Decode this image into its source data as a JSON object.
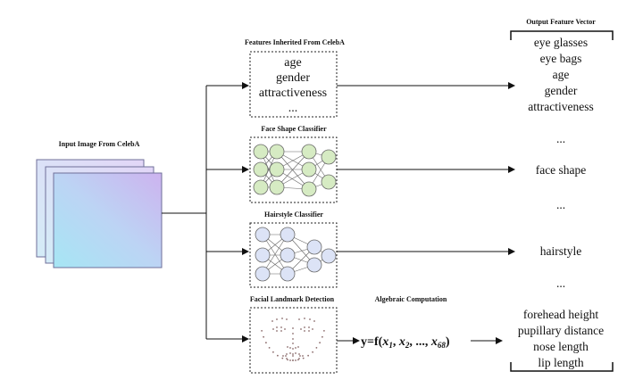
{
  "input": {
    "title": "Input Image From CelebA"
  },
  "modules": {
    "inherited": {
      "title": "Features Inherited From CelebA",
      "lines": [
        "age",
        "gender",
        "attractiveness",
        "..."
      ]
    },
    "face_shape": {
      "title": "Face Shape Classifier"
    },
    "hairstyle": {
      "title": "Hairstyle Classifier"
    },
    "landmark": {
      "title": "Facial Landmark Detection"
    }
  },
  "algebra": {
    "title": "Algebraic Computation",
    "formula": {
      "prefix": "y=f(",
      "x1": "x",
      "sub1": "1",
      "sep1": ", ",
      "x2": "x",
      "sub2": "2",
      "sep2": ", ..., ",
      "x3": "x",
      "sub3": "68",
      "suffix": ")"
    }
  },
  "output": {
    "title": "Output Feature Vector",
    "items": [
      "eye glasses",
      "eye bags",
      "age",
      "gender",
      "attractiveness",
      "...",
      "face shape",
      "...",
      "hairstyle",
      "...",
      "forehead height",
      "pupillary  distance",
      "nose length",
      "lip length"
    ]
  },
  "colors": {
    "image_gradient": [
      "#cdb3ef",
      "#b8d8f4",
      "#a6e3f4"
    ],
    "face_nodes": "#d6ebc3",
    "hair_nodes": "#dce3f6",
    "landmark_dots": "#8a6a6a"
  }
}
